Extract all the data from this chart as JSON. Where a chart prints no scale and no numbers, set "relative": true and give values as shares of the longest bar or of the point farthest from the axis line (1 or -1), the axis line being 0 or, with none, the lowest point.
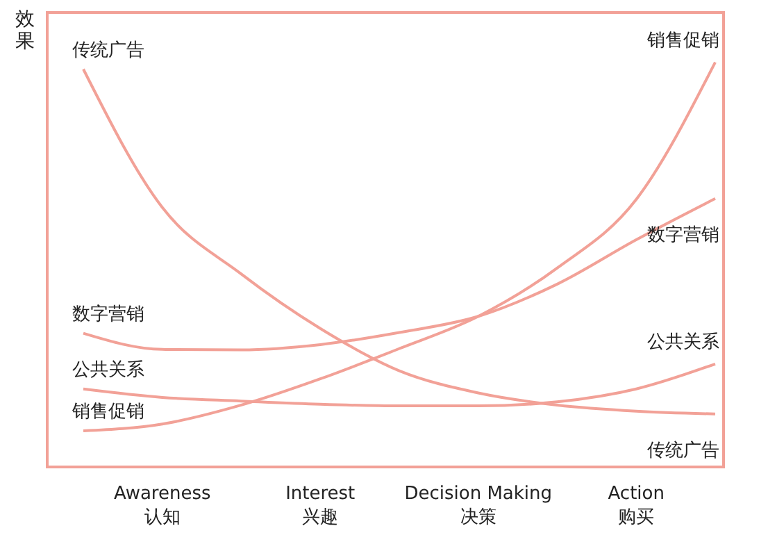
{
  "chart_data": {
    "type": "line",
    "ylabel": "效果",
    "relative": true,
    "categories": [
      null,
      "Awareness\n认知",
      null,
      "Interest\n兴趣",
      null,
      "Decision Making\n决策",
      null,
      "Action\n购买",
      null
    ],
    "marker": "none",
    "line_style": "solid",
    "grid": false,
    "legend": false,
    "series": [
      {
        "name": "传统广告",
        "color": "#f2a197",
        "values": [
          0.983,
          0.64,
          0.475,
          0.34,
          0.235,
          0.18,
          0.15,
          0.135,
          0.128
        ]
      },
      {
        "name": "销售促销",
        "color": "#f2a197",
        "values": [
          0.086,
          0.103,
          0.15,
          0.215,
          0.29,
          0.37,
          0.49,
          0.66,
          1
        ]
      },
      {
        "name": "数字营销",
        "color": "#f2a197",
        "values": [
          0.328,
          0.288,
          0.287,
          0.3,
          0.33,
          0.37,
          0.45,
          0.56,
          0.662
        ]
      },
      {
        "name": "公共关系",
        "color": "#f2a197",
        "values": [
          0.19,
          0.169,
          0.16,
          0.152,
          0.148,
          0.148,
          0.158,
          0.19,
          0.252
        ]
      }
    ]
  }
}
